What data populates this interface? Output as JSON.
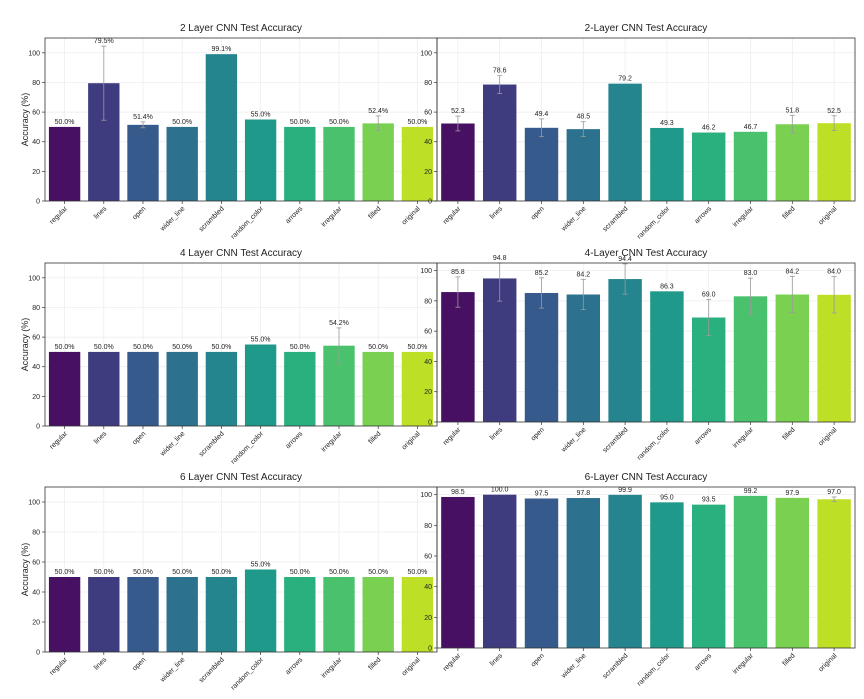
{
  "palette": [
    "#471063",
    "#3f3b7f",
    "#365a8c",
    "#2c718e",
    "#25858e",
    "#1f9a8a",
    "#2ab07f",
    "#4ac16d",
    "#7ad151",
    "#bddf26"
  ],
  "chart_data": [
    {
      "type": "bar",
      "title": "2 Layer CNN Test Accuracy",
      "ylabel": "Accuracy (%)",
      "ylim": [
        0,
        110
      ],
      "yticks": [
        0,
        20,
        40,
        60,
        80,
        100
      ],
      "grid": true,
      "categories": [
        "regular",
        "lines",
        "open",
        "wider_line",
        "scrambled",
        "random_color",
        "arrows",
        "irregular",
        "filled",
        "original"
      ],
      "values": [
        50.0,
        79.5,
        51.4,
        50.0,
        99.1,
        55.0,
        50.0,
        50.0,
        52.4,
        50.0
      ],
      "value_labels": [
        "50.0%",
        "79.5%",
        "51.4%",
        "50.0%",
        "99.1%",
        "55.0%",
        "50.0%",
        "50.0%",
        "52.4%",
        "50.0%"
      ],
      "error": [
        0,
        25,
        2,
        0,
        0,
        0,
        0,
        0,
        5,
        0
      ]
    },
    {
      "type": "bar",
      "title": "2-Layer CNN Test Accuracy",
      "ylabel": "",
      "ylim": [
        0,
        110
      ],
      "yticks": [
        0,
        20,
        40,
        60,
        80,
        100
      ],
      "grid": true,
      "categories": [
        "regular",
        "lines",
        "open",
        "wider_line",
        "scrambled",
        "random_color",
        "arrows",
        "irregular",
        "filled",
        "original"
      ],
      "values": [
        52.3,
        78.6,
        49.4,
        48.5,
        79.2,
        49.3,
        46.2,
        46.7,
        51.8,
        52.5
      ],
      "value_labels": [
        "52.3",
        "78.6",
        "49.4",
        "48.5",
        "79.2",
        "49.3",
        "46.2",
        "46.7",
        "51.8",
        "52.5"
      ],
      "error": [
        5,
        6,
        6,
        5,
        0,
        0,
        0,
        0,
        6,
        5
      ]
    },
    {
      "type": "bar",
      "title": "4 Layer CNN Test Accuracy",
      "ylabel": "Accuracy (%)",
      "ylim": [
        0,
        110
      ],
      "yticks": [
        0,
        20,
        40,
        60,
        80,
        100
      ],
      "grid": true,
      "categories": [
        "regular",
        "lines",
        "open",
        "wider_line",
        "scrambled",
        "random_color",
        "arrows",
        "irregular",
        "filled",
        "original"
      ],
      "values": [
        50.0,
        50.0,
        50.0,
        50.0,
        50.0,
        55.0,
        50.0,
        54.2,
        50.0,
        50.0
      ],
      "value_labels": [
        "50.0%",
        "50.0%",
        "50.0%",
        "50.0%",
        "50.0%",
        "55.0%",
        "50.0%",
        "54.2%",
        "50.0%",
        "50.0%"
      ],
      "error": [
        0,
        0,
        0,
        0,
        0,
        0,
        0,
        12,
        0,
        0
      ]
    },
    {
      "type": "bar",
      "title": "4-Layer CNN Test Accuracy",
      "ylabel": "",
      "ylim": [
        0,
        105
      ],
      "yticks": [
        0,
        20,
        40,
        60,
        80,
        100
      ],
      "grid": true,
      "categories": [
        "regular",
        "lines",
        "open",
        "wider_line",
        "scrambled",
        "random_color",
        "arrows",
        "irregular",
        "filled",
        "original"
      ],
      "values": [
        85.8,
        94.8,
        85.2,
        84.2,
        94.4,
        86.3,
        69.0,
        83.0,
        84.2,
        84.0
      ],
      "value_labels": [
        "85.8",
        "94.8",
        "85.2",
        "84.2",
        "94.4",
        "86.3",
        "69.0",
        "83.0",
        "84.2",
        "84.0"
      ],
      "error": [
        10,
        15,
        10,
        10,
        10,
        0,
        12,
        12,
        12,
        12
      ]
    },
    {
      "type": "bar",
      "title": "6 Layer CNN Test Accuracy",
      "ylabel": "Accuracy (%)",
      "ylim": [
        0,
        110
      ],
      "yticks": [
        0,
        20,
        40,
        60,
        80,
        100
      ],
      "grid": true,
      "categories": [
        "regular",
        "lines",
        "open",
        "wider_line",
        "scrambled",
        "random_color",
        "arrows",
        "irregular",
        "filled",
        "original"
      ],
      "values": [
        50.0,
        50.0,
        50.0,
        50.0,
        50.0,
        55.0,
        50.0,
        50.0,
        50.0,
        50.0
      ],
      "value_labels": [
        "50.0%",
        "50.0%",
        "50.0%",
        "50.0%",
        "50.0%",
        "55.0%",
        "50.0%",
        "50.0%",
        "50.0%",
        "50.0%"
      ],
      "error": [
        0,
        0,
        0,
        0,
        0,
        0,
        0,
        0,
        0,
        0
      ]
    },
    {
      "type": "bar",
      "title": "6-Layer CNN Test Accuracy",
      "ylabel": "",
      "ylim": [
        0,
        105
      ],
      "yticks": [
        0,
        20,
        40,
        60,
        80,
        100
      ],
      "grid": true,
      "categories": [
        "regular",
        "lines",
        "open",
        "wider_line",
        "scrambled",
        "random_color",
        "arrows",
        "irregular",
        "filled",
        "original"
      ],
      "values": [
        98.5,
        100.0,
        97.5,
        97.8,
        99.9,
        95.0,
        93.5,
        99.2,
        97.9,
        97.0
      ],
      "value_labels": [
        "98.5",
        "100.0",
        "97.5",
        "97.8",
        "99.9",
        "95.0",
        "93.5",
        "99.2",
        "97.9",
        "97.0"
      ],
      "error": [
        0,
        0,
        0,
        0,
        0,
        0,
        0,
        0,
        0,
        1.5
      ]
    }
  ]
}
